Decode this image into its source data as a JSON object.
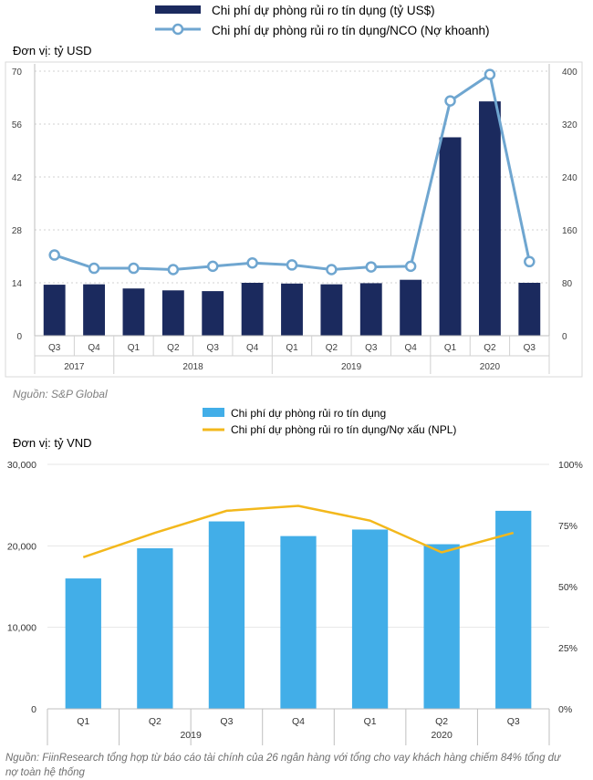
{
  "chart_data": [
    {
      "type": "bar",
      "unit_label": "Đơn vị: tỷ USD",
      "legend": [
        "Chi phí dự phòng rủi ro tín dụng (tỷ US$)",
        "Chi phí dự phòng rủi ro tín dụng/NCO (Nợ khoanh)"
      ],
      "categories": [
        "Q3",
        "Q4",
        "Q1",
        "Q2",
        "Q3",
        "Q4",
        "Q1",
        "Q2",
        "Q3",
        "Q4",
        "Q1",
        "Q2",
        "Q3"
      ],
      "years": [
        {
          "label": "2017",
          "count": 2
        },
        {
          "label": "2018",
          "count": 4
        },
        {
          "label": "2019",
          "count": 4
        },
        {
          "label": "2020",
          "count": 3
        }
      ],
      "series": [
        {
          "name": "Chi phí dự phòng rủi ro tín dụng (tỷ US$)",
          "kind": "bar",
          "axis": "left",
          "values": [
            13.5,
            13.6,
            12.5,
            12.0,
            11.8,
            14.0,
            13.8,
            13.6,
            13.9,
            14.8,
            52.5,
            62.0,
            14.0
          ]
        },
        {
          "name": "Chi phí dự phòng rủi ro tín dụng/NCO (Nợ khoanh)",
          "kind": "line",
          "axis": "right",
          "values": [
            122,
            102,
            102,
            100,
            105,
            110,
            107,
            100,
            104,
            105,
            355,
            395,
            112
          ]
        }
      ],
      "y_left": {
        "ticks": [
          0,
          14,
          28,
          42,
          56,
          70
        ],
        "range": [
          0,
          70
        ]
      },
      "y_right": {
        "ticks": [
          0,
          80,
          160,
          240,
          320,
          400
        ],
        "range": [
          0,
          400
        ]
      },
      "colors": {
        "bar": "#1b2a5e",
        "line": "#6fa6d0"
      },
      "source": "Nguồn: S&P Global"
    },
    {
      "type": "bar",
      "unit_label": "Đơn vị: tỷ VND",
      "legend": [
        "Chi phí dự phòng rủi ro tín dụng",
        "Chi phí dự phòng rủi ro tín dụng/Nợ xấu (NPL)"
      ],
      "categories": [
        "Q1",
        "Q2",
        "Q3",
        "Q4",
        "Q1",
        "Q2",
        "Q3"
      ],
      "years": [
        {
          "label": "2019",
          "count": 4
        },
        {
          "label": "2020",
          "count": 3
        }
      ],
      "series": [
        {
          "name": "Chi phí dự phòng rủi ro tín dụng",
          "kind": "bar",
          "axis": "left",
          "values": [
            16000,
            19700,
            23000,
            21200,
            22000,
            20200,
            24300
          ]
        },
        {
          "name": "Chi phí dự phòng rủi ro tín dụng/Nợ xấu (NPL)",
          "kind": "line",
          "axis": "right",
          "values": [
            62,
            72,
            81,
            83,
            77,
            64,
            72
          ]
        }
      ],
      "y_left": {
        "ticks": [
          "0",
          "10,000",
          "20,000",
          "30,000"
        ],
        "tick_values": [
          0,
          10000,
          20000,
          30000
        ],
        "range": [
          0,
          30000
        ]
      },
      "y_right": {
        "ticks": [
          "0%",
          "25%",
          "50%",
          "75%",
          "100%"
        ],
        "tick_values": [
          0,
          25,
          50,
          75,
          100
        ],
        "range": [
          0,
          100
        ]
      },
      "colors": {
        "bar": "#42aee8",
        "line": "#f3b81c"
      },
      "source": "Nguồn: FiinResearch tổng hợp từ báo cáo tài chính của 26 ngân hàng với tổng cho vay khách hàng chiếm 84% tổng dư nợ toàn hệ thống"
    }
  ]
}
